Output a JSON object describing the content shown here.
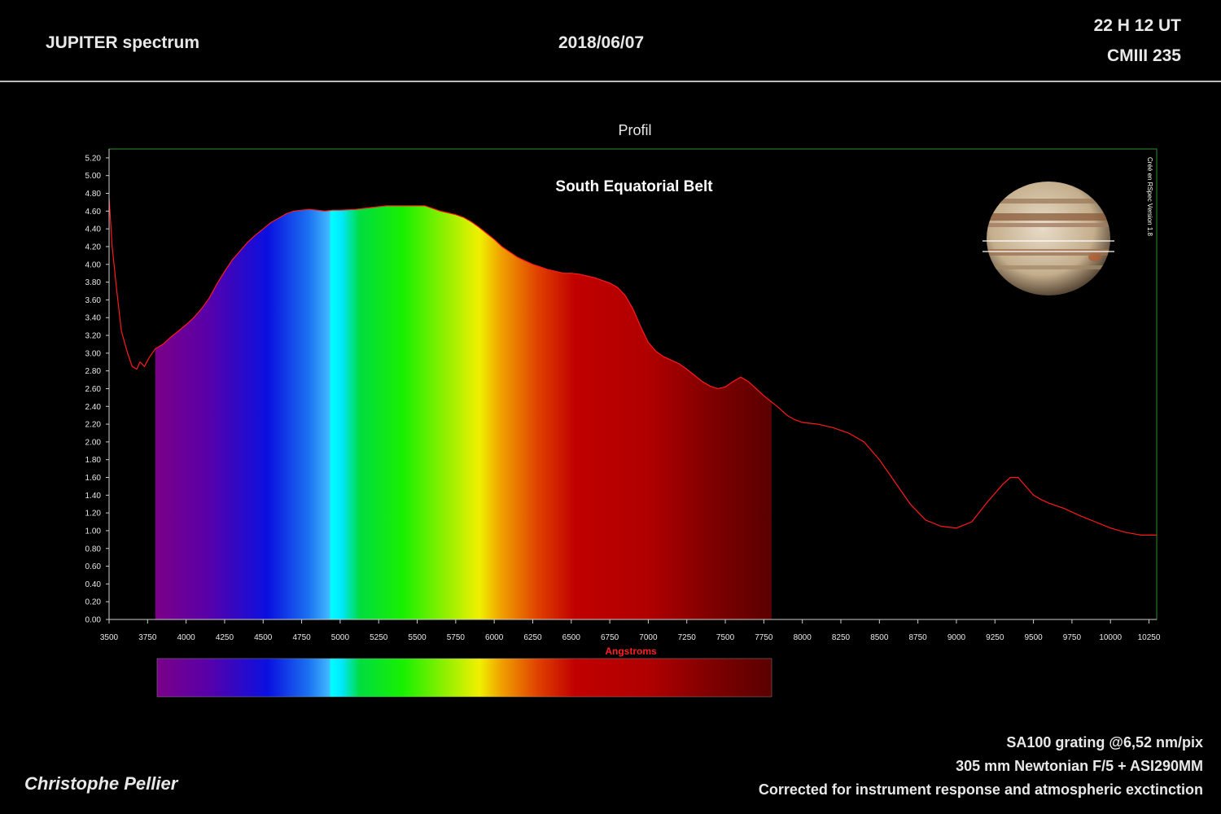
{
  "header": {
    "title": "JUPITER spectrum",
    "date": "2018/06/07",
    "time": "22 H 12 UT",
    "cm": "CMIII 235"
  },
  "footer": {
    "line1": "SA100 grating @6,52 nm/pix",
    "line2": "305 mm Newtonian F/5 + ASI290MM",
    "line3": "Corrected for instrument response and atmospheric exctinction",
    "author": "Christophe Pellier"
  },
  "colors": {
    "line": "#ff1a1a",
    "frame": "#2e8b2e",
    "text": "#e8e8e8",
    "xlabel": "#ff2020"
  },
  "chart_data": {
    "type": "line",
    "title": "Profil",
    "annotation": "South Equatorial Belt",
    "watermark": "Créé en RSpec Version 1.8",
    "xlabel": "Angstroms",
    "ylabel": "",
    "xlim": [
      3500,
      10300
    ],
    "ylim": [
      0,
      5.3
    ],
    "x_ticks": [
      3500,
      3750,
      4000,
      4250,
      4500,
      4750,
      5000,
      5250,
      5500,
      5750,
      6000,
      6250,
      6500,
      6750,
      7000,
      7250,
      7500,
      7750,
      8000,
      8250,
      8500,
      8750,
      9000,
      9250,
      9500,
      9750,
      10000,
      10250
    ],
    "y_ticks": [
      "0.00",
      "0.20",
      "0.40",
      "0.60",
      "0.80",
      "1.00",
      "1.20",
      "1.40",
      "1.60",
      "1.80",
      "2.00",
      "2.20",
      "2.40",
      "2.60",
      "2.80",
      "3.00",
      "3.20",
      "3.40",
      "3.60",
      "3.80",
      "4.00",
      "4.20",
      "4.40",
      "4.60",
      "4.80",
      "5.00",
      "5.20"
    ],
    "filled_range": [
      3800,
      7800
    ],
    "series": [
      {
        "x": [
          3500,
          3520,
          3550,
          3580,
          3620,
          3650,
          3680,
          3700,
          3730,
          3760,
          3800,
          3850,
          3900,
          3950,
          4000,
          4050,
          4100,
          4150,
          4200,
          4250,
          4300,
          4350,
          4400,
          4450,
          4500,
          4550,
          4600,
          4650,
          4700,
          4750,
          4800,
          4850,
          4900,
          4950,
          5000,
          5100,
          5200,
          5300,
          5400,
          5500,
          5550,
          5600,
          5650,
          5700,
          5750,
          5800,
          5850,
          5900,
          5950,
          6000,
          6050,
          6100,
          6150,
          6200,
          6250,
          6300,
          6350,
          6400,
          6450,
          6500,
          6550,
          6600,
          6650,
          6700,
          6750,
          6800,
          6850,
          6900,
          6950,
          7000,
          7050,
          7100,
          7150,
          7200,
          7250,
          7300,
          7350,
          7400,
          7450,
          7500,
          7550,
          7600,
          7650,
          7700,
          7750,
          7800,
          7850,
          7900,
          7950,
          8000,
          8100,
          8200,
          8300,
          8400,
          8500,
          8600,
          8700,
          8800,
          8900,
          9000,
          9100,
          9200,
          9300,
          9350,
          9400,
          9450,
          9500,
          9550,
          9600,
          9700,
          9800,
          9900,
          10000,
          10100,
          10200,
          10300
        ],
        "values": [
          4.75,
          4.2,
          3.7,
          3.25,
          3.0,
          2.85,
          2.82,
          2.9,
          2.85,
          2.95,
          3.05,
          3.1,
          3.18,
          3.25,
          3.32,
          3.4,
          3.5,
          3.62,
          3.78,
          3.92,
          4.05,
          4.15,
          4.25,
          4.33,
          4.4,
          4.47,
          4.52,
          4.57,
          4.6,
          4.61,
          4.62,
          4.61,
          4.6,
          4.61,
          4.61,
          4.62,
          4.64,
          4.66,
          4.66,
          4.66,
          4.66,
          4.63,
          4.6,
          4.58,
          4.56,
          4.53,
          4.48,
          4.42,
          4.35,
          4.28,
          4.2,
          4.14,
          4.08,
          4.04,
          4.0,
          3.97,
          3.94,
          3.92,
          3.9,
          3.9,
          3.89,
          3.87,
          3.85,
          3.82,
          3.79,
          3.74,
          3.65,
          3.5,
          3.3,
          3.12,
          3.02,
          2.96,
          2.92,
          2.88,
          2.82,
          2.75,
          2.68,
          2.63,
          2.6,
          2.62,
          2.68,
          2.73,
          2.68,
          2.6,
          2.52,
          2.45,
          2.38,
          2.3,
          2.25,
          2.22,
          2.2,
          2.16,
          2.1,
          2.0,
          1.8,
          1.55,
          1.3,
          1.12,
          1.05,
          1.03,
          1.1,
          1.32,
          1.52,
          1.6,
          1.6,
          1.5,
          1.4,
          1.35,
          1.31,
          1.25,
          1.17,
          1.1,
          1.03,
          0.98,
          0.95,
          0.95
        ]
      }
    ]
  }
}
